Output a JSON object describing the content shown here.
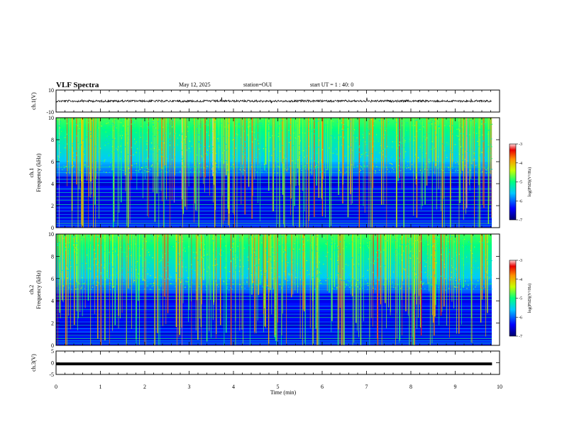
{
  "header": {
    "title": "VLF Spectra",
    "date": "May 12, 2025",
    "station": "station=OUI",
    "start": "start  UT =   1 : 40: 0"
  },
  "chart_data": [
    {
      "type": "line",
      "name": "ch1-waveform",
      "ylabel": "ch.1(V)",
      "ylim": [
        -10,
        10
      ],
      "yticks": [
        "10",
        "-10"
      ],
      "xlim": [
        0,
        10
      ],
      "baseline": 0,
      "color": "#000000"
    },
    {
      "type": "heatmap",
      "name": "ch1-spectrogram",
      "ylabel": "ch.1\nFrequency (kHz)",
      "ylim": [
        0,
        10
      ],
      "yticks": [
        "0",
        "2",
        "4",
        "6",
        "8",
        "10"
      ],
      "xlim": [
        0,
        10
      ],
      "data_end_min": 9.83,
      "colorbar": {
        "label": "log(PSD)(V²/Hz)",
        "range": [
          -7,
          -3
        ],
        "ticks": [
          "-3",
          "-4",
          "-5",
          "-6",
          "-7"
        ]
      }
    },
    {
      "type": "heatmap",
      "name": "ch2-spectrogram",
      "ylabel": "ch.2\nFrequency (kHz)",
      "ylim": [
        0,
        10
      ],
      "yticks": [
        "0",
        "2",
        "4",
        "6",
        "8",
        "10"
      ],
      "xlim": [
        0,
        10
      ],
      "data_end_min": 9.83,
      "colorbar": {
        "label": "log(PSD)(V²/Hz)",
        "range": [
          -7,
          -3
        ],
        "ticks": [
          "-3",
          "-4",
          "-5",
          "-6",
          "-7"
        ]
      }
    },
    {
      "type": "line",
      "name": "ch3-waveform",
      "ylabel": "ch.3(V)",
      "ylim": [
        -5,
        5
      ],
      "yticks": [
        "5",
        "0",
        "-5"
      ],
      "xlim": [
        0,
        10
      ],
      "baseline": -0.5,
      "color": "#000000"
    }
  ],
  "xaxis": {
    "label": "Time (min)",
    "ticks": [
      "0",
      "1",
      "2",
      "3",
      "4",
      "5",
      "6",
      "7",
      "8",
      "9",
      "10"
    ]
  },
  "colormap": [
    "#0000c8",
    "#0060ff",
    "#00d0ff",
    "#00ffa0",
    "#a0ff00",
    "#ffd000",
    "#ff3000"
  ]
}
